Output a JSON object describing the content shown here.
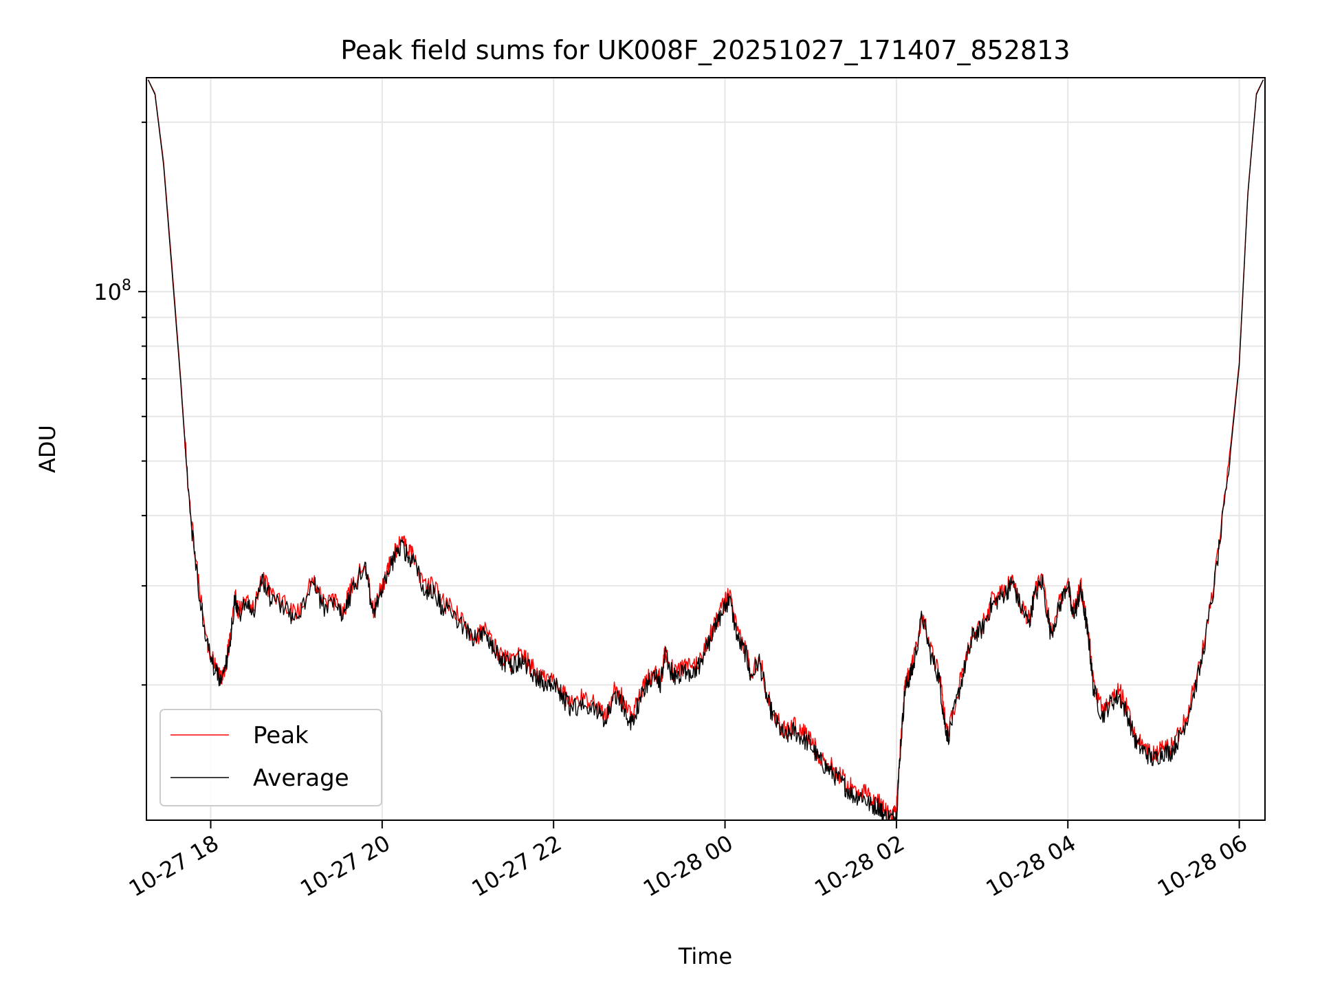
{
  "chart_data": {
    "type": "line",
    "title": "Peak field sums for UK008F_20251027_171407_852813",
    "xlabel": "Time",
    "ylabel": "ADU",
    "y_scale": "log",
    "xlim_hours": [
      17.25,
      30.3
    ],
    "ylim": [
      11500000,
      240000000
    ],
    "x_ticks": [
      {
        "hour": 18,
        "label": "10-27 18"
      },
      {
        "hour": 20,
        "label": "10-27 20"
      },
      {
        "hour": 22,
        "label": "10-27 22"
      },
      {
        "hour": 24,
        "label": "10-28 00"
      },
      {
        "hour": 26,
        "label": "10-28 02"
      },
      {
        "hour": 28,
        "label": "10-28 04"
      },
      {
        "hour": 30,
        "label": "10-28 06"
      }
    ],
    "y_major_ticks": [
      {
        "value": 100000000,
        "label": "10^8"
      }
    ],
    "grid": true,
    "legend_position": "lower-left",
    "x_hours": [
      17.27,
      17.35,
      17.45,
      17.55,
      17.65,
      17.75,
      17.85,
      17.95,
      18.05,
      18.12,
      18.18,
      18.22,
      18.28,
      18.32,
      18.4,
      18.5,
      18.6,
      18.7,
      18.85,
      19.0,
      19.2,
      19.3,
      19.45,
      19.55,
      19.65,
      19.8,
      19.9,
      20.0,
      20.1,
      20.2,
      20.3,
      20.35,
      20.5,
      20.6,
      20.7,
      20.85,
      21.0,
      21.1,
      21.2,
      21.3,
      21.4,
      21.5,
      21.6,
      21.7,
      21.8,
      21.9,
      22.0,
      22.1,
      22.2,
      22.35,
      22.5,
      22.6,
      22.7,
      22.8,
      22.9,
      23.0,
      23.1,
      23.2,
      23.25,
      23.3,
      23.4,
      23.5,
      23.6,
      23.7,
      23.8,
      23.9,
      24.0,
      24.05,
      24.15,
      24.25,
      24.3,
      24.4,
      24.5,
      24.6,
      24.7,
      24.8,
      24.9,
      25.0,
      25.1,
      25.2,
      25.3,
      25.4,
      25.5,
      25.6,
      25.7,
      25.8,
      25.85,
      25.95,
      26.0,
      26.05,
      26.1,
      26.15,
      26.2,
      26.3,
      26.4,
      26.5,
      26.55,
      26.6,
      26.7,
      26.8,
      26.9,
      27.0,
      27.1,
      27.2,
      27.3,
      27.35,
      27.45,
      27.55,
      27.6,
      27.7,
      27.8,
      27.9,
      28.0,
      28.05,
      28.1,
      28.15,
      28.2,
      28.25,
      28.3,
      28.4,
      28.5,
      28.6,
      28.7,
      28.8,
      28.9,
      29.0,
      29.1,
      29.2,
      29.3,
      29.4,
      29.55,
      29.7,
      29.85,
      30.0,
      30.1,
      30.2,
      30.28
    ],
    "series": [
      {
        "name": "Peak",
        "color": "#ff0000",
        "values": [
          238000000,
          225000000,
          170000000,
          110000000,
          70000000,
          42000000,
          31000000,
          24000000,
          21500000,
          20500000,
          22000000,
          24000000,
          29000000,
          27000000,
          28000000,
          27500000,
          31000000,
          29000000,
          28000000,
          26500000,
          31000000,
          28000000,
          28000000,
          27000000,
          30000000,
          33000000,
          27000000,
          30000000,
          33000000,
          36000000,
          35000000,
          34000000,
          30000000,
          30000000,
          28000000,
          27000000,
          25000000,
          24500000,
          25000000,
          23500000,
          22500000,
          22000000,
          22500000,
          22000000,
          21000000,
          20500000,
          20500000,
          19500000,
          18500000,
          19000000,
          18500000,
          17500000,
          19500000,
          19000000,
          17500000,
          19000000,
          20500000,
          21000000,
          20500000,
          23000000,
          21000000,
          21500000,
          21500000,
          22000000,
          24000000,
          26000000,
          28000000,
          29000000,
          24500000,
          23000000,
          21000000,
          22500000,
          19000000,
          17500000,
          16500000,
          17000000,
          16500000,
          16000000,
          15000000,
          14500000,
          14000000,
          13500000,
          13000000,
          13000000,
          12500000,
          12500000,
          12000000,
          11800000,
          12000000,
          16000000,
          20000000,
          21000000,
          22000000,
          27000000,
          23000000,
          21000000,
          18000000,
          16500000,
          19000000,
          22000000,
          25000000,
          25500000,
          28000000,
          29000000,
          30000000,
          31000000,
          28000000,
          26000000,
          29000000,
          31000000,
          25000000,
          28000000,
          31000000,
          27000000,
          28000000,
          30000000,
          27000000,
          24000000,
          20000000,
          18000000,
          19000000,
          19500000,
          18000000,
          16000000,
          15500000,
          15000000,
          15500000,
          15500000,
          16500000,
          18000000,
          22000000,
          30000000,
          45000000,
          75000000,
          150000000,
          225000000,
          238000000
        ]
      },
      {
        "name": "Average",
        "color": "#000000",
        "values": [
          238000000,
          224000000,
          168000000,
          108000000,
          69000000,
          41500000,
          30500000,
          23700000,
          21200000,
          20200000,
          21700000,
          23600000,
          28200000,
          26600000,
          27500000,
          27000000,
          30500000,
          28500000,
          27500000,
          26000000,
          30500000,
          27500000,
          27500000,
          26600000,
          29500000,
          32500000,
          26600000,
          29500000,
          32500000,
          35300000,
          34300000,
          33300000,
          29500000,
          29500000,
          27500000,
          26600000,
          24600000,
          24100000,
          24600000,
          23100000,
          22100000,
          21600000,
          22100000,
          21600000,
          20600000,
          20100000,
          20100000,
          19100000,
          18100000,
          18600000,
          18100000,
          17100000,
          19100000,
          18600000,
          17100000,
          18600000,
          20100000,
          20600000,
          20100000,
          22600000,
          20600000,
          21100000,
          21100000,
          21600000,
          23600000,
          25600000,
          27500000,
          28500000,
          24100000,
          22600000,
          20600000,
          22100000,
          18600000,
          17100000,
          16100000,
          16600000,
          16100000,
          15600000,
          14700000,
          14200000,
          13700000,
          13200000,
          12700000,
          12700000,
          12200000,
          12200000,
          11700000,
          11600000,
          11700000,
          15700000,
          19600000,
          20600000,
          21600000,
          26600000,
          22600000,
          20600000,
          17600000,
          16100000,
          18600000,
          21600000,
          24600000,
          25100000,
          27500000,
          28500000,
          29500000,
          30500000,
          27500000,
          25600000,
          28500000,
          30500000,
          24600000,
          27500000,
          30500000,
          26600000,
          27500000,
          29500000,
          26600000,
          23600000,
          19600000,
          17600000,
          18600000,
          19100000,
          17600000,
          15700000,
          15200000,
          14700000,
          15200000,
          15200000,
          16100000,
          17600000,
          21600000,
          29500000,
          44000000,
          74000000,
          149000000,
          224000000,
          238000000
        ]
      }
    ]
  }
}
